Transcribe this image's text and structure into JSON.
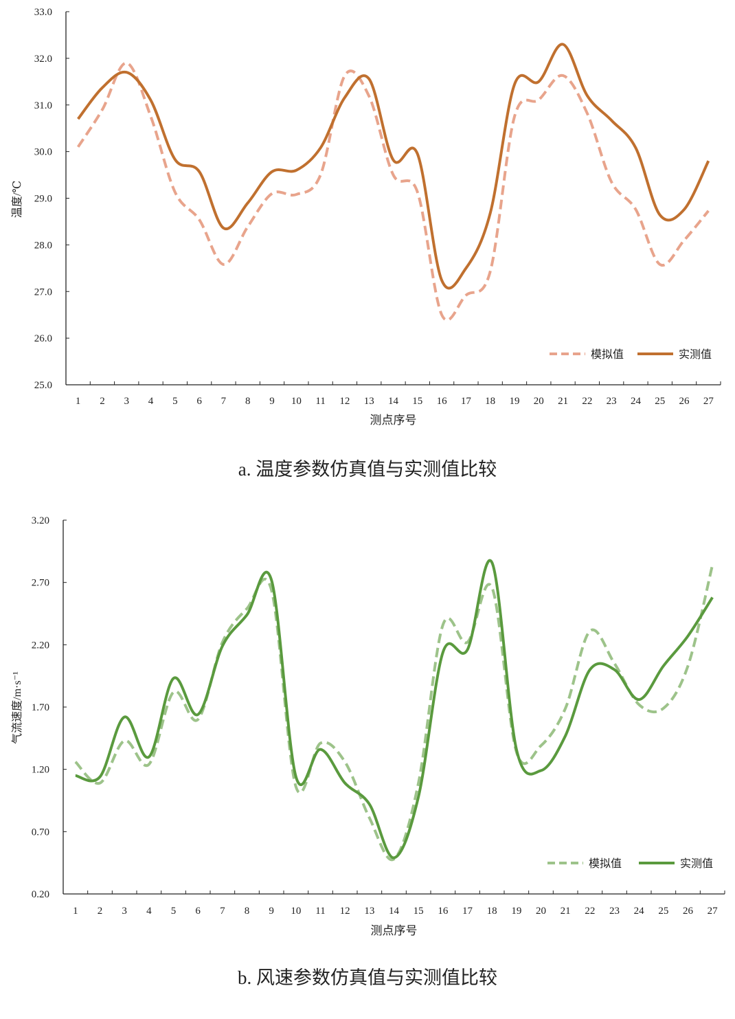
{
  "colors": {
    "temp_sim": "#E8A48C",
    "temp_meas": "#C0702F",
    "wind_sim": "#9DC38A",
    "wind_meas": "#5A9A3E",
    "axis": "#222222"
  },
  "chart_data": [
    {
      "type": "line",
      "title": "a. 温度参数仿真值与实测值比较",
      "xlabel": "测点序号",
      "ylabel": "温度/℃",
      "ylim": [
        25.0,
        33.0
      ],
      "yticks": [
        "25.0",
        "26.0",
        "27.0",
        "28.0",
        "29.0",
        "30.0",
        "31.0",
        "32.0",
        "33.0"
      ],
      "x": [
        "1",
        "2",
        "3",
        "4",
        "5",
        "6",
        "7",
        "8",
        "9",
        "10",
        "11",
        "12",
        "13",
        "14",
        "15",
        "16",
        "17",
        "18",
        "19",
        "20",
        "21",
        "22",
        "23",
        "24",
        "25",
        "26",
        "27"
      ],
      "legend_position": "bottom-right",
      "series": [
        {
          "name": "模拟值",
          "style": "dashed",
          "values": [
            30.1,
            30.9,
            31.9,
            30.75,
            29.13,
            28.54,
            27.58,
            28.39,
            29.1,
            29.08,
            29.5,
            31.63,
            31.19,
            29.5,
            29.13,
            26.5,
            26.92,
            27.43,
            30.75,
            31.11,
            31.63,
            30.82,
            29.35,
            28.76,
            27.58,
            28.1,
            28.73
          ]
        },
        {
          "name": "实测值",
          "style": "solid",
          "values": [
            30.7,
            31.37,
            31.7,
            31.1,
            29.83,
            29.57,
            28.36,
            28.9,
            29.57,
            29.6,
            30.08,
            31.16,
            31.56,
            29.82,
            29.95,
            27.24,
            27.5,
            28.68,
            31.44,
            31.5,
            32.3,
            31.2,
            30.67,
            30.08,
            28.64,
            28.76,
            29.8
          ]
        }
      ]
    },
    {
      "type": "line",
      "title": "b. 风速参数仿真值与实测值比较",
      "xlabel": "测点序号",
      "ylabel": "气流速度/m·s⁻¹",
      "ylim": [
        0.2,
        3.2
      ],
      "yticks": [
        "0.20",
        "0.70",
        "1.20",
        "1.70",
        "2.20",
        "2.70",
        "3.20"
      ],
      "x": [
        "1",
        "2",
        "3",
        "4",
        "5",
        "6",
        "7",
        "8",
        "9",
        "10",
        "11",
        "12",
        "13",
        "14",
        "15",
        "16",
        "17",
        "18",
        "19",
        "20",
        "21",
        "22",
        "23",
        "24",
        "25",
        "26",
        "27"
      ],
      "legend_position": "bottom-right",
      "series": [
        {
          "name": "模拟值",
          "style": "dashed",
          "values": [
            1.26,
            1.09,
            1.43,
            1.24,
            1.82,
            1.6,
            2.22,
            2.49,
            2.64,
            1.06,
            1.41,
            1.26,
            0.81,
            0.48,
            1.09,
            2.36,
            2.22,
            2.66,
            1.34,
            1.39,
            1.69,
            2.31,
            2.05,
            1.72,
            1.69,
            2.03,
            2.84
          ]
        },
        {
          "name": "实测值",
          "style": "solid",
          "values": [
            1.15,
            1.14,
            1.62,
            1.3,
            1.93,
            1.64,
            2.19,
            2.44,
            2.72,
            1.14,
            1.36,
            1.09,
            0.92,
            0.49,
            0.98,
            2.14,
            2.16,
            2.86,
            1.36,
            1.19,
            1.47,
            2.0,
            2.0,
            1.76,
            2.03,
            2.27,
            2.58
          ]
        }
      ]
    }
  ]
}
